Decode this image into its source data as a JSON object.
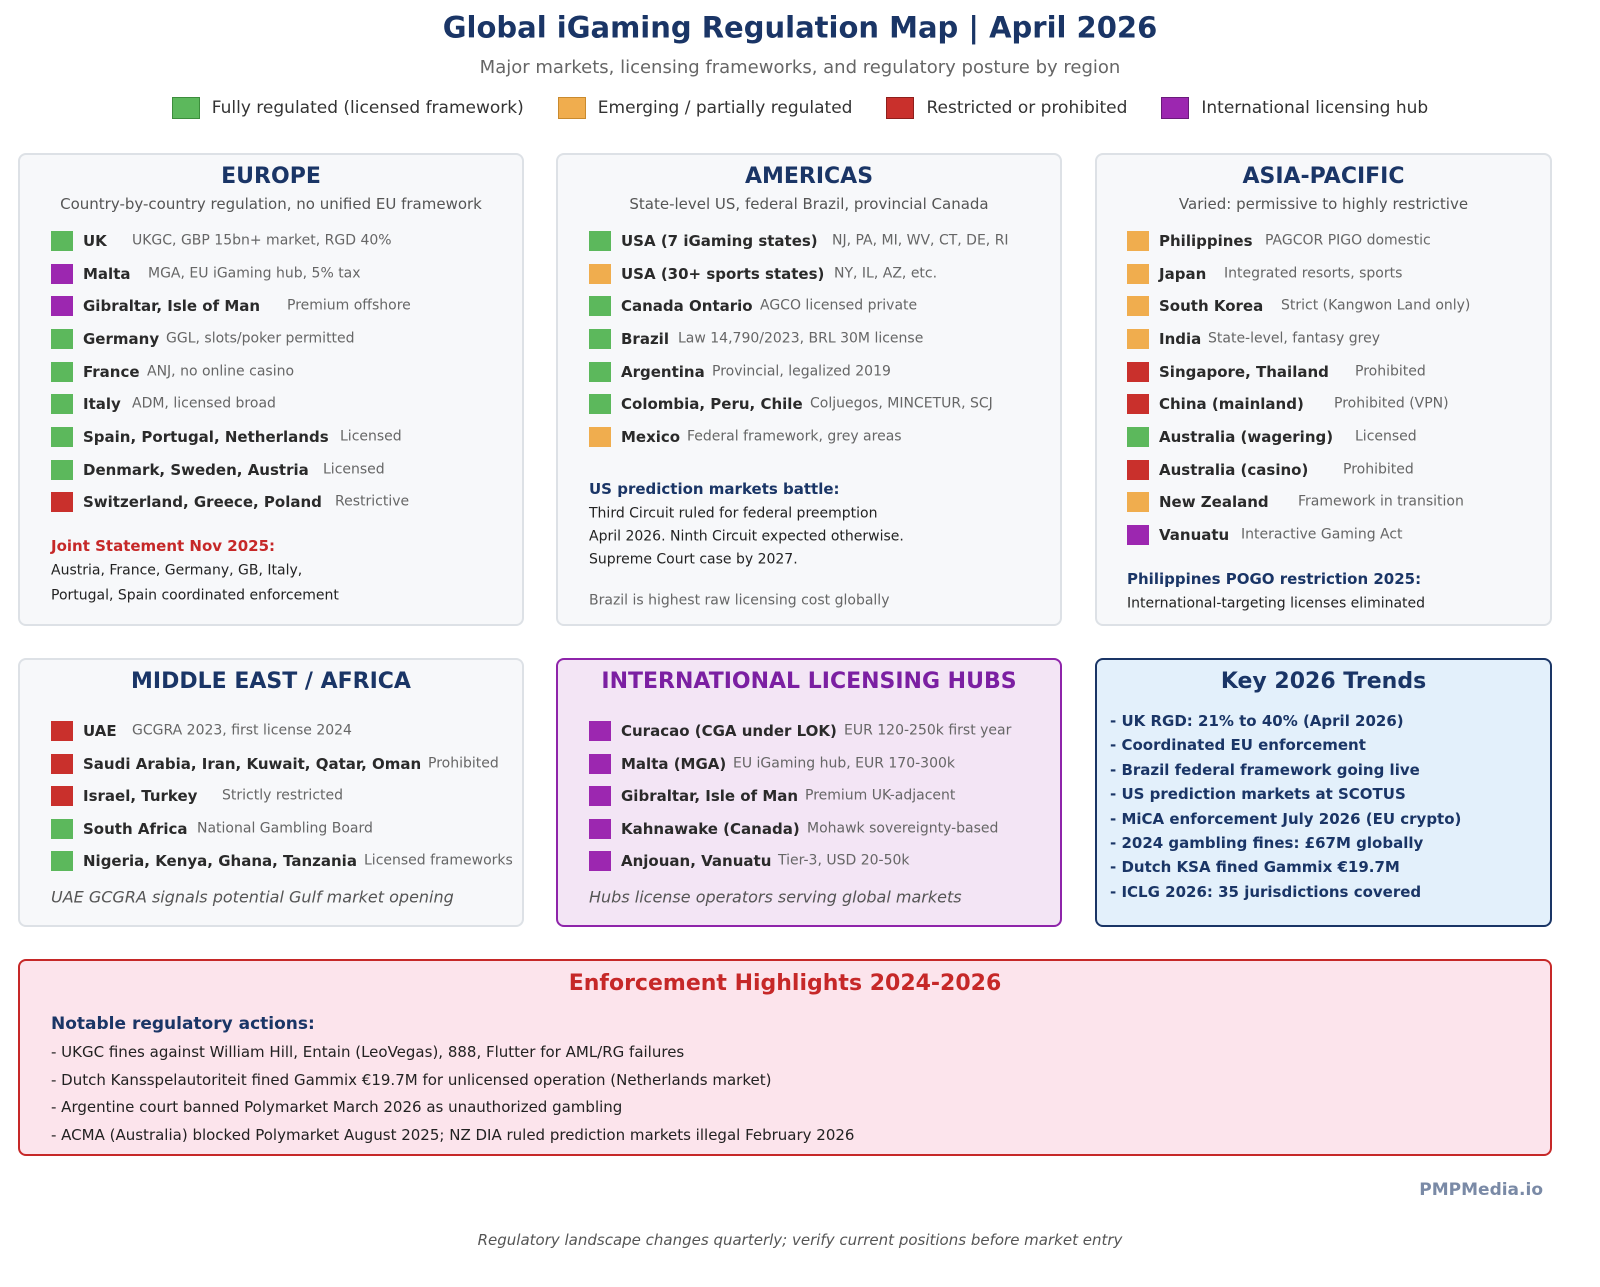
{
  "header": {
    "title": "Global iGaming Regulation Map | April 2026",
    "subtitle": "Major markets, licensing frameworks, and regulatory posture by region"
  },
  "colors": {
    "regulated": "#5cb85c",
    "emerging": "#f0ad4e",
    "restricted": "#c9302c",
    "hub": "#9c27b0",
    "title": "#1a3566"
  },
  "legend": [
    {
      "status": "regulated",
      "label": "Fully regulated (licensed framework)"
    },
    {
      "status": "emerging",
      "label": "Emerging / partially regulated"
    },
    {
      "status": "restricted",
      "label": "Restricted or prohibited"
    },
    {
      "status": "hub",
      "label": "International licensing hub"
    }
  ],
  "panels": {
    "europe": {
      "title": "EUROPE",
      "subtitle": "Country-by-country regulation, no unified EU framework",
      "rows": [
        {
          "status": "regulated",
          "name": "UK",
          "desc": "UKGC, GBP 15bn+ market, RGD 40%"
        },
        {
          "status": "hub",
          "name": "Malta",
          "desc": "MGA, EU iGaming hub, 5% tax"
        },
        {
          "status": "hub",
          "name": "Gibraltar, Isle of Man",
          "desc": "Premium offshore"
        },
        {
          "status": "regulated",
          "name": "Germany",
          "desc": "GGL, slots/poker permitted"
        },
        {
          "status": "regulated",
          "name": "France",
          "desc": "ANJ, no online casino"
        },
        {
          "status": "regulated",
          "name": "Italy",
          "desc": "ADM, licensed broad"
        },
        {
          "status": "regulated",
          "name": "Spain, Portugal, Netherlands",
          "desc": "Licensed"
        },
        {
          "status": "regulated",
          "name": "Denmark, Sweden, Austria",
          "desc": "Licensed"
        },
        {
          "status": "restricted",
          "name": "Switzerland, Greece, Poland",
          "desc": "Restrictive"
        }
      ],
      "note_heading": "Joint Statement Nov 2025:",
      "note_lines": [
        "Austria, France, Germany, GB, Italy,",
        "Portugal, Spain coordinated enforcement"
      ]
    },
    "americas": {
      "title": "AMERICAS",
      "subtitle": "State-level US, federal Brazil, provincial Canada",
      "rows": [
        {
          "status": "regulated",
          "name": "USA (7 iGaming states)",
          "desc": "NJ, PA, MI, WV, CT, DE, RI"
        },
        {
          "status": "emerging",
          "name": "USA (30+ sports states)",
          "desc": "NY, IL, AZ, etc."
        },
        {
          "status": "regulated",
          "name": "Canada Ontario",
          "desc": "AGCO licensed private"
        },
        {
          "status": "regulated",
          "name": "Brazil",
          "desc": "Law 14,790/2023, BRL 30M license"
        },
        {
          "status": "regulated",
          "name": "Argentina",
          "desc": "Provincial, legalized 2019"
        },
        {
          "status": "regulated",
          "name": "Colombia, Peru, Chile",
          "desc": "Coljuegos, MINCETUR, SCJ"
        },
        {
          "status": "emerging",
          "name": "Mexico",
          "desc": "Federal framework, grey areas"
        }
      ],
      "note_heading": "US prediction markets battle:",
      "note_lines": [
        "Third Circuit ruled for federal preemption",
        "April 2026. Ninth Circuit expected otherwise.",
        "Supreme Court case by 2027."
      ],
      "footnote": "Brazil is highest raw licensing cost globally"
    },
    "asia": {
      "title": "ASIA-PACIFIC",
      "subtitle": "Varied: permissive to highly restrictive",
      "rows": [
        {
          "status": "emerging",
          "name": "Philippines",
          "desc": "PAGCOR PIGO domestic"
        },
        {
          "status": "emerging",
          "name": "Japan",
          "desc": "Integrated resorts, sports"
        },
        {
          "status": "emerging",
          "name": "South Korea",
          "desc": "Strict (Kangwon Land only)"
        },
        {
          "status": "emerging",
          "name": "India",
          "desc": "State-level, fantasy grey"
        },
        {
          "status": "restricted",
          "name": "Singapore, Thailand",
          "desc": "Prohibited"
        },
        {
          "status": "restricted",
          "name": "China (mainland)",
          "desc": "Prohibited (VPN)"
        },
        {
          "status": "regulated",
          "name": "Australia (wagering)",
          "desc": "Licensed"
        },
        {
          "status": "restricted",
          "name": "Australia (casino)",
          "desc": "Prohibited"
        },
        {
          "status": "emerging",
          "name": "New Zealand",
          "desc": "Framework in transition"
        },
        {
          "status": "hub",
          "name": "Vanuatu",
          "desc": "Interactive Gaming Act"
        }
      ],
      "note_heading": "Philippines POGO restriction 2025:",
      "note_lines": [
        "International-targeting licenses eliminated"
      ]
    },
    "mea": {
      "title": "MIDDLE EAST / AFRICA",
      "rows": [
        {
          "status": "restricted",
          "name": "UAE",
          "desc": "GCGRA 2023, first license 2024"
        },
        {
          "status": "restricted",
          "name": "Saudi Arabia, Iran, Kuwait, Qatar, Oman",
          "desc": "Prohibited"
        },
        {
          "status": "restricted",
          "name": "Israel, Turkey",
          "desc": "Strictly restricted"
        },
        {
          "status": "regulated",
          "name": "South Africa",
          "desc": "National Gambling Board"
        },
        {
          "status": "regulated",
          "name": "Nigeria, Kenya, Ghana, Tanzania",
          "desc": "Licensed frameworks"
        }
      ],
      "italic_note": "UAE GCGRA signals potential Gulf market opening"
    },
    "hubs": {
      "title": "INTERNATIONAL LICENSING HUBS",
      "rows": [
        {
          "status": "hub",
          "name": "Curacao (CGA under LOK)",
          "desc": "EUR 120-250k first year"
        },
        {
          "status": "hub",
          "name": "Malta (MGA)",
          "desc": "EU iGaming hub, EUR 170-300k"
        },
        {
          "status": "hub",
          "name": "Gibraltar, Isle of Man",
          "desc": "Premium UK-adjacent"
        },
        {
          "status": "hub",
          "name": "Kahnawake (Canada)",
          "desc": "Mohawk sovereignty-based"
        },
        {
          "status": "hub",
          "name": "Anjouan, Vanuatu",
          "desc": "Tier-3, USD 20-50k"
        }
      ],
      "italic_note": "Hubs license operators serving global markets"
    }
  },
  "trends": {
    "title": "Key 2026 Trends",
    "items": [
      "- UK RGD: 21% to 40% (April 2026)",
      "- Coordinated EU enforcement",
      "- Brazil federal framework going live",
      "- US prediction markets at SCOTUS",
      "- MiCA enforcement July 2026 (EU crypto)",
      "- 2024 gambling fines: £67M globally",
      "- Dutch KSA fined Gammix €19.7M",
      "- ICLG 2026: 35 jurisdictions covered"
    ]
  },
  "enforcement": {
    "title": "Enforcement Highlights 2024-2026",
    "heading": "Notable regulatory actions:",
    "items": [
      "- UKGC fines against William Hill, Entain (LeoVegas), 888, Flutter for AML/RG failures",
      "- Dutch Kansspelautoriteit fined Gammix €19.7M for unlicensed operation (Netherlands market)",
      "- Argentine court banned Polymarket March 2026 as unauthorized gambling",
      "- ACMA (Australia) blocked Polymarket August 2025; NZ DIA ruled prediction markets illegal February 2026"
    ]
  },
  "brand": "PMPMedia.io",
  "footer": "Regulatory landscape changes quarterly; verify current positions before market entry"
}
